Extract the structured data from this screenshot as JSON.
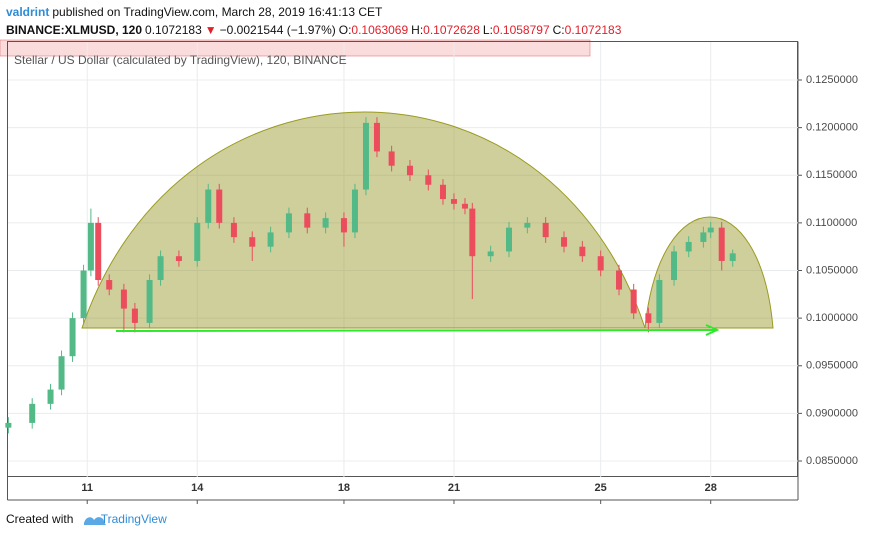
{
  "header": {
    "author": "valdrint",
    "published": "published on TradingView.com, March 28, 2019 16:41:13 CET",
    "symbol": "BINANCE:XLMUSD, 120",
    "last": "0.1072183",
    "change_arrow": "▼",
    "change": "−0.0021544 (−1.97%)",
    "ohlc": [
      {
        "label": "O:",
        "value": "0.1063069"
      },
      {
        "label": "H:",
        "value": "0.1072628"
      },
      {
        "label": "L:",
        "value": "0.1058797"
      },
      {
        "label": "C:",
        "value": "0.1072183"
      }
    ]
  },
  "chart_data": {
    "type": "candlestick",
    "subtitle": "Stellar / US Dollar (calculated by TradingView), 120, BINANCE",
    "x": [
      8.85,
      9.5,
      10.0,
      10.3,
      10.6,
      10.9,
      11.1,
      11.3,
      11.6,
      12.0,
      12.3,
      12.7,
      13.0,
      13.5,
      14.0,
      14.3,
      14.6,
      15.0,
      15.5,
      16.0,
      16.5,
      17.0,
      17.5,
      18.0,
      18.3,
      18.6,
      18.9,
      19.3,
      19.8,
      20.3,
      20.7,
      21.0,
      21.3,
      21.5,
      22.0,
      22.5,
      23.0,
      23.5,
      24.0,
      24.5,
      25.0,
      25.5,
      25.9,
      26.3,
      26.6,
      27.0,
      27.4,
      27.8,
      28.0,
      28.3,
      28.6
    ],
    "open": [
      0.0885,
      0.089,
      0.091,
      0.0925,
      0.096,
      0.1,
      0.105,
      0.11,
      0.104,
      0.103,
      0.101,
      0.0995,
      0.104,
      0.1065,
      0.106,
      0.11,
      0.1135,
      0.11,
      0.1085,
      0.1075,
      0.109,
      0.111,
      0.1095,
      0.1105,
      0.109,
      0.1135,
      0.1205,
      0.1175,
      0.116,
      0.115,
      0.114,
      0.1125,
      0.112,
      0.1115,
      0.1065,
      0.107,
      0.1095,
      0.11,
      0.1085,
      0.1075,
      0.1065,
      0.105,
      0.103,
      0.1005,
      0.0995,
      0.104,
      0.107,
      0.108,
      0.109,
      0.1095,
      0.106
    ],
    "high": [
      0.0896,
      0.0916,
      0.0931,
      0.0966,
      0.1006,
      0.1056,
      0.1115,
      0.1106,
      0.1046,
      0.1036,
      0.1016,
      0.1046,
      0.1071,
      0.1071,
      0.1106,
      0.1141,
      0.1141,
      0.1106,
      0.1091,
      0.1096,
      0.1116,
      0.1116,
      0.1111,
      0.1111,
      0.1141,
      0.1211,
      0.1211,
      0.1181,
      0.1166,
      0.1156,
      0.1146,
      0.1131,
      0.1126,
      0.1121,
      0.1076,
      0.1101,
      0.1106,
      0.1106,
      0.1091,
      0.1081,
      0.1071,
      0.1056,
      0.1036,
      0.1011,
      0.1046,
      0.1076,
      0.1086,
      0.1096,
      0.1101,
      0.1101,
      0.1072
    ],
    "low": [
      0.0879,
      0.0884,
      0.0904,
      0.0919,
      0.0954,
      0.0994,
      0.1044,
      0.1034,
      0.1024,
      0.0985,
      0.0985,
      0.0989,
      0.1034,
      0.1054,
      0.1054,
      0.1094,
      0.1094,
      0.1079,
      0.106,
      0.1069,
      0.1084,
      0.1089,
      0.1089,
      0.1075,
      0.1084,
      0.1129,
      0.1169,
      0.1154,
      0.1144,
      0.1134,
      0.1119,
      0.1114,
      0.1109,
      0.102,
      0.1059,
      0.1064,
      0.1089,
      0.1079,
      0.1069,
      0.1059,
      0.1044,
      0.1024,
      0.0999,
      0.0985,
      0.0989,
      0.1034,
      0.1064,
      0.1074,
      0.1084,
      0.105,
      0.1054
    ],
    "close": [
      0.089,
      0.091,
      0.0925,
      0.096,
      0.1,
      0.105,
      0.11,
      0.104,
      0.103,
      0.101,
      0.0995,
      0.104,
      0.1065,
      0.106,
      0.11,
      0.1135,
      0.11,
      0.1085,
      0.1075,
      0.109,
      0.111,
      0.1095,
      0.1105,
      0.109,
      0.1135,
      0.1205,
      0.1175,
      0.116,
      0.115,
      0.114,
      0.1125,
      0.112,
      0.1115,
      0.1065,
      0.107,
      0.1095,
      0.11,
      0.1085,
      0.1075,
      0.1065,
      0.105,
      0.103,
      0.1005,
      0.0995,
      0.104,
      0.107,
      0.108,
      0.109,
      0.1095,
      0.106,
      0.1068
    ],
    "up_color": "#53b987",
    "down_color": "#eb4d5c",
    "xlim": [
      8.84,
      30.38
    ],
    "xticks": [
      11,
      14,
      18,
      21,
      25,
      28
    ],
    "ylim": [
      0.08332,
      0.12899
    ],
    "yticks": [
      {
        "value": 0.085,
        "label": "0.0850000"
      },
      {
        "value": 0.09,
        "label": "0.0900000"
      },
      {
        "value": 0.095,
        "label": "0.0950000"
      },
      {
        "value": 0.1,
        "label": "0.1000000"
      },
      {
        "value": 0.105,
        "label": "0.1050000"
      },
      {
        "value": 0.11,
        "label": "0.1100000"
      },
      {
        "value": 0.115,
        "label": "0.1150000"
      },
      {
        "value": 0.12,
        "label": "0.1200000"
      },
      {
        "value": 0.125,
        "label": "0.1250000"
      }
    ],
    "grid": true
  },
  "footer": {
    "created": "Created with",
    "brand": "TradingView"
  }
}
